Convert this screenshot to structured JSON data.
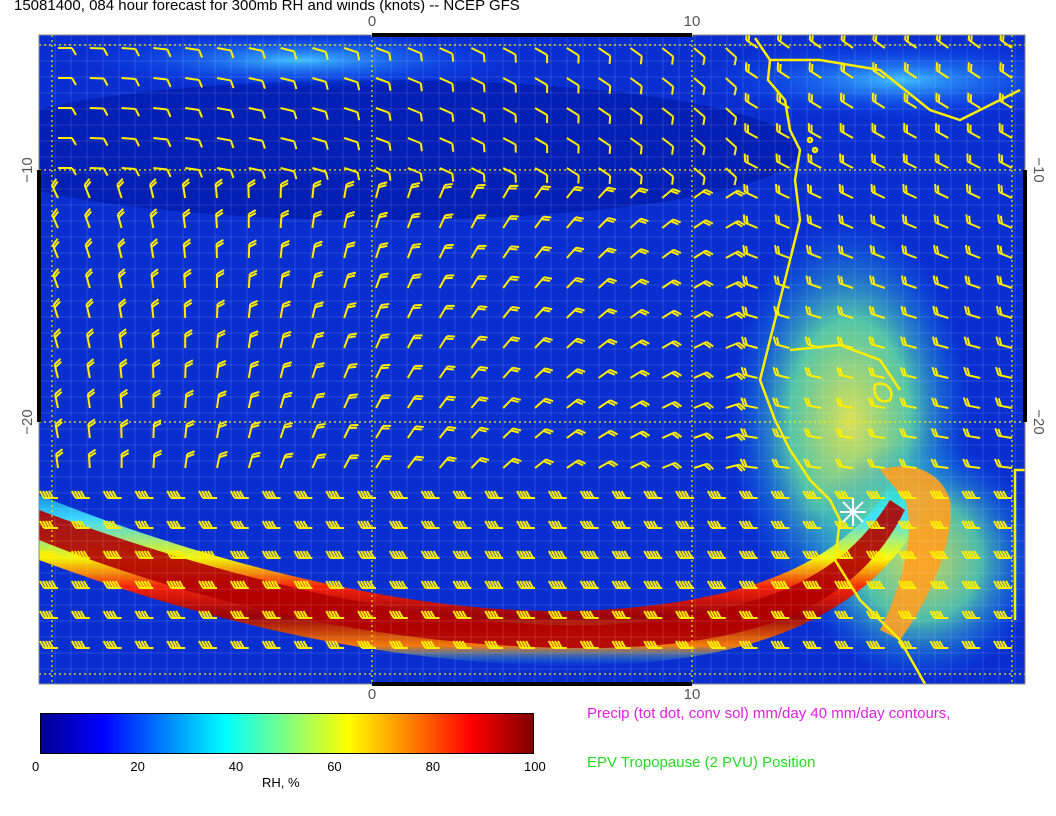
{
  "title": "15081400, 084 hour forecast for 300mb RH and winds (knots) -- NCEP GFS",
  "map": {
    "x_ticks_top": [
      "0",
      "10"
    ],
    "x_ticks_bottom": [
      "0",
      "10"
    ],
    "y_ticks_left": [
      "−10",
      "−20"
    ],
    "y_ticks_right": [
      "−10",
      "−20"
    ],
    "coast_color": "#ffee00",
    "barb_color": "#ffee00",
    "grid_color": "#ffee00",
    "marker_color": "#ffffff"
  },
  "colorbar": {
    "label": "RH, %",
    "ticks": [
      "0",
      "20",
      "40",
      "60",
      "80",
      "100"
    ],
    "colors": [
      "#00008f",
      "#0000ff",
      "#0080ff",
      "#00ffff",
      "#80ff80",
      "#ffff00",
      "#ff8000",
      "#ff0000",
      "#800000"
    ]
  },
  "legend": {
    "precip": "Precip (tot dot, conv sol) mm/day 40 mm/day contours,",
    "tropopause": "EPV Tropopause (2 PVU) Position"
  }
}
